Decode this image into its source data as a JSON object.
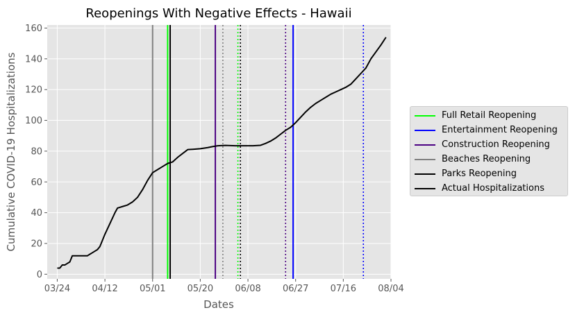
{
  "chart_data": {
    "type": "line",
    "title": "Reopenings With Negative Effects - Hawaii",
    "xlabel": "Dates",
    "ylabel": "Cumulative COVID-19 Hospitalizations",
    "x_range": [
      "2020-03-20",
      "2020-08-04"
    ],
    "ylim": [
      -3,
      162
    ],
    "x_ticks": [
      {
        "date": "2020-03-24",
        "label": "03/24"
      },
      {
        "date": "2020-04-12",
        "label": "04/12"
      },
      {
        "date": "2020-05-01",
        "label": "05/01"
      },
      {
        "date": "2020-05-20",
        "label": "05/20"
      },
      {
        "date": "2020-06-08",
        "label": "06/08"
      },
      {
        "date": "2020-06-27",
        "label": "06/27"
      },
      {
        "date": "2020-07-16",
        "label": "07/16"
      },
      {
        "date": "2020-08-04",
        "label": "08/04"
      }
    ],
    "y_ticks": [
      0,
      20,
      40,
      60,
      80,
      100,
      120,
      140,
      160
    ],
    "grid": true,
    "legend_position": "right",
    "series": [
      {
        "name": "Actual Hospitalizations",
        "color": "#000000",
        "points": [
          [
            "2020-03-24",
            4
          ],
          [
            "2020-03-25",
            4
          ],
          [
            "2020-03-26",
            6
          ],
          [
            "2020-03-27",
            6
          ],
          [
            "2020-03-28",
            7
          ],
          [
            "2020-03-29",
            8
          ],
          [
            "2020-03-30",
            12
          ],
          [
            "2020-04-01",
            12
          ],
          [
            "2020-04-03",
            12
          ],
          [
            "2020-04-05",
            12
          ],
          [
            "2020-04-06",
            13
          ],
          [
            "2020-04-07",
            14
          ],
          [
            "2020-04-08",
            15
          ],
          [
            "2020-04-09",
            16
          ],
          [
            "2020-04-10",
            18
          ],
          [
            "2020-04-11",
            22
          ],
          [
            "2020-04-12",
            26
          ],
          [
            "2020-04-14",
            33
          ],
          [
            "2020-04-16",
            40
          ],
          [
            "2020-04-17",
            43
          ],
          [
            "2020-04-19",
            44
          ],
          [
            "2020-04-21",
            45
          ],
          [
            "2020-04-23",
            47
          ],
          [
            "2020-04-25",
            50
          ],
          [
            "2020-04-27",
            55
          ],
          [
            "2020-04-29",
            61
          ],
          [
            "2020-05-01",
            66
          ],
          [
            "2020-05-03",
            68
          ],
          [
            "2020-05-05",
            70
          ],
          [
            "2020-05-07",
            72
          ],
          [
            "2020-05-09",
            73
          ],
          [
            "2020-05-11",
            76
          ],
          [
            "2020-05-13",
            78.5
          ],
          [
            "2020-05-15",
            81
          ],
          [
            "2020-05-17",
            81.2
          ],
          [
            "2020-05-20",
            81.6
          ],
          [
            "2020-05-23",
            82.3
          ],
          [
            "2020-05-25",
            83
          ],
          [
            "2020-05-27",
            83.5
          ],
          [
            "2020-05-30",
            83.7
          ],
          [
            "2020-06-03",
            83.5
          ],
          [
            "2020-06-06",
            83.5
          ],
          [
            "2020-06-10",
            83.5
          ],
          [
            "2020-06-13",
            83.8
          ],
          [
            "2020-06-15",
            85
          ],
          [
            "2020-06-17",
            86.5
          ],
          [
            "2020-06-19",
            88.5
          ],
          [
            "2020-06-21",
            91
          ],
          [
            "2020-06-23",
            93.5
          ],
          [
            "2020-06-25",
            95.5
          ],
          [
            "2020-06-27",
            98.5
          ],
          [
            "2020-06-29",
            102
          ],
          [
            "2020-07-01",
            105.5
          ],
          [
            "2020-07-03",
            108.5
          ],
          [
            "2020-07-05",
            111
          ],
          [
            "2020-07-07",
            113
          ],
          [
            "2020-07-09",
            115
          ],
          [
            "2020-07-11",
            117
          ],
          [
            "2020-07-13",
            118.5
          ],
          [
            "2020-07-15",
            120
          ],
          [
            "2020-07-17",
            121.5
          ],
          [
            "2020-07-19",
            123.5
          ],
          [
            "2020-07-21",
            127
          ],
          [
            "2020-07-23",
            130.5
          ],
          [
            "2020-07-25",
            134
          ],
          [
            "2020-07-27",
            140
          ],
          [
            "2020-07-29",
            144.5
          ],
          [
            "2020-07-31",
            149
          ],
          [
            "2020-08-02",
            154
          ]
        ]
      }
    ],
    "vertical_lines": [
      {
        "name": "Beaches Reopening",
        "color": "#808080",
        "date": "2020-05-01",
        "style": "solid"
      },
      {
        "name": "Full Retail Reopening",
        "color": "#00ff00",
        "date": "2020-05-07",
        "style": "solid"
      },
      {
        "name": "Parks Reopening",
        "color": "#000000",
        "date": "2020-05-08",
        "style": "solid"
      },
      {
        "name": "Construction Reopening",
        "color": "#4b0082",
        "date": "2020-05-26",
        "style": "solid"
      },
      {
        "name": "Beaches Reopening",
        "color": "#808080",
        "date": "2020-05-29",
        "style": "dotted"
      },
      {
        "name": "Full Retail Reopening",
        "color": "#00ff00",
        "date": "2020-06-04",
        "style": "dotted"
      },
      {
        "name": "Parks Reopening",
        "color": "#000000",
        "date": "2020-06-05",
        "style": "dotted"
      },
      {
        "name": "Construction Reopening",
        "color": "#4b0082",
        "date": "2020-06-23",
        "style": "dotted"
      },
      {
        "name": "Entertainment Reopening",
        "color": "#0000ff",
        "date": "2020-06-26",
        "style": "solid"
      },
      {
        "name": "Entertainment Reopening",
        "color": "#0000ff",
        "date": "2020-07-24",
        "style": "dotted"
      }
    ],
    "legend": [
      {
        "label": "Full Retail Reopening",
        "color": "#00ff00"
      },
      {
        "label": "Entertainment Reopening",
        "color": "#0000ff"
      },
      {
        "label": "Construction Reopening",
        "color": "#4b0082"
      },
      {
        "label": "Beaches Reopening",
        "color": "#808080"
      },
      {
        "label": "Parks Reopening",
        "color": "#000000"
      },
      {
        "label": "Actual Hospitalizations",
        "color": "#000000"
      }
    ]
  }
}
